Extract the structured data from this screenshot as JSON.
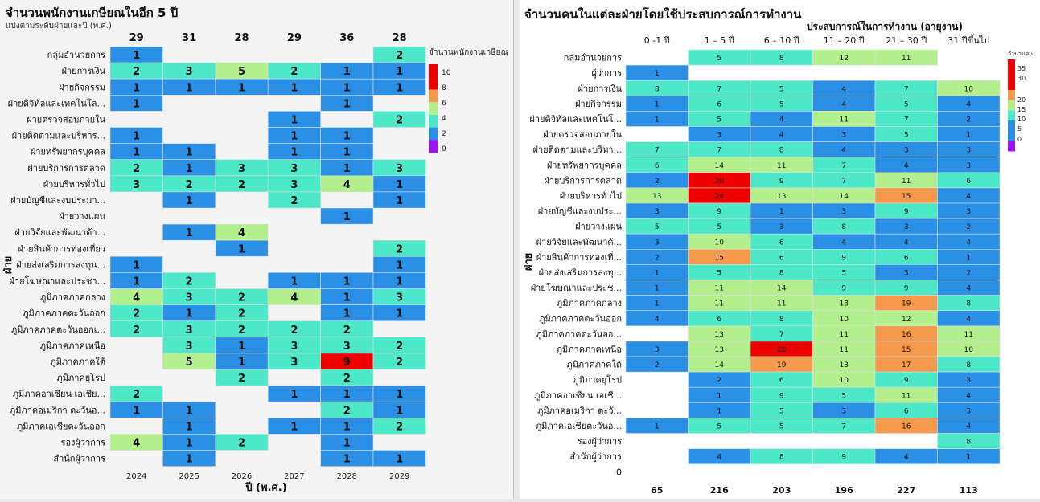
{
  "colors": {
    "none": "#ffffff",
    "blue": "#2b8fe6",
    "teal": "#4de8c8",
    "green": "#b4ef8e",
    "orange": "#f59a4c",
    "red": "#ee0000",
    "purple": "#9a16f0"
  },
  "left": {
    "title": "จำนวนพนักงานเกษียณในอีก 5 ปี",
    "subtitle": "แบ่งตามระดับฝ่ายและปี (พ.ศ.)",
    "xlabel": "ปี (พ.ศ.)",
    "ylabel": "ฝ่าย",
    "legend": {
      "title": "จำนวนพนักงานเกษียณ",
      "ticks": [
        "10",
        "8",
        "6",
        "4",
        "2",
        "0"
      ]
    }
  },
  "right": {
    "title": "จำนวนคนในแต่ละฝ่ายโดยใช้ประสบการณ์การทำงาน",
    "ylabel": "ฝ่าย",
    "legend": {
      "title": "จำนวนคน",
      "ticks": [
        "35",
        "30",
        "20",
        "15",
        "10",
        "5",
        "0"
      ]
    }
  },
  "chart_data": [
    {
      "type": "heatmap",
      "title": "จำนวนพนักงานเกษียณในอีก 5 ปี",
      "subtitle": "แบ่งตามระดับฝ่ายและปี (พ.ศ.)",
      "xlabel": "ปี (พ.ศ.)",
      "ylabel": "ฝ่าย",
      "x": [
        "2024",
        "2025",
        "2026",
        "2027",
        "2028",
        "2029"
      ],
      "column_totals": [
        29,
        31,
        28,
        29,
        36,
        28
      ],
      "y": [
        "กลุ่มอำนวยการ",
        "ฝ่ายการเงิน",
        "ฝ่ายกิจกรรม",
        "ฝ่ายดิจิทัลและเทคโนโล...",
        "ฝ่ายตรวจสอบภายใน",
        "ฝ่ายติดตามและบริหาร...",
        "ฝ่ายทรัพยากรบุคคล",
        "ฝ่ายบริการการตลาด",
        "ฝ่ายบริหารทั่วไป",
        "ฝ่ายบัญชีและงบประมา...",
        "ฝ่ายวางแผน",
        "ฝ่ายวิจัยและพัฒนาด้า...",
        "ฝ่ายสินค้าการท่องเที่ยว",
        "ฝ่ายส่งเสริมการลงทุน...",
        "ฝ่ายโฆษณาและประชา...",
        "ภูมิภาคภาคกลาง",
        "ภูมิภาคภาคตะวันออก",
        "ภูมิภาคภาคตะวันออกเ...",
        "ภูมิภาคภาคเหนือ",
        "ภูมิภาคภาคใต้",
        "ภูมิภาคยุโรป",
        "ภูมิภาคอาเซียน เอเชีย...",
        "ภูมิภาคอเมริกา ตะวันอ...",
        "ภูมิภาคเอเชียตะวันออก",
        "รองผู้ว่าการ",
        "สำนักผู้ว่าการ"
      ],
      "values": [
        [
          1,
          null,
          null,
          null,
          null,
          2
        ],
        [
          2,
          3,
          5,
          2,
          1,
          1
        ],
        [
          1,
          1,
          1,
          1,
          1,
          1
        ],
        [
          1,
          null,
          null,
          null,
          1,
          null
        ],
        [
          null,
          null,
          null,
          1,
          null,
          2
        ],
        [
          1,
          null,
          null,
          1,
          1,
          null
        ],
        [
          1,
          1,
          null,
          1,
          1,
          null
        ],
        [
          2,
          1,
          3,
          3,
          1,
          3
        ],
        [
          3,
          2,
          2,
          3,
          4,
          1
        ],
        [
          null,
          1,
          null,
          2,
          null,
          1
        ],
        [
          null,
          null,
          null,
          null,
          1,
          null
        ],
        [
          null,
          1,
          4,
          null,
          null,
          null
        ],
        [
          null,
          null,
          1,
          null,
          null,
          2
        ],
        [
          1,
          null,
          null,
          null,
          null,
          1
        ],
        [
          1,
          2,
          null,
          1,
          1,
          1
        ],
        [
          4,
          3,
          2,
          4,
          1,
          3
        ],
        [
          2,
          1,
          2,
          null,
          1,
          1
        ],
        [
          2,
          3,
          2,
          2,
          2,
          null
        ],
        [
          null,
          3,
          1,
          3,
          3,
          2
        ],
        [
          null,
          5,
          1,
          3,
          9,
          2
        ],
        [
          null,
          null,
          2,
          null,
          2,
          null
        ],
        [
          2,
          null,
          null,
          1,
          1,
          1
        ],
        [
          1,
          1,
          null,
          null,
          2,
          1
        ],
        [
          null,
          1,
          null,
          1,
          1,
          2
        ],
        [
          4,
          1,
          2,
          null,
          1,
          null
        ],
        [
          null,
          1,
          null,
          null,
          1,
          1
        ]
      ]
    },
    {
      "type": "heatmap",
      "title": "จำนวนคนในแต่ละฝ่ายโดยใช้ประสบการณ์การทำงาน",
      "xlabel": "ประสบการณ์ในการทำงาน (อายุงาน)",
      "ylabel": "ฝ่าย",
      "x": [
        "0 -1 ปี",
        "1 – 5 ปี",
        "6 – 10 ปี",
        "11 – 20 ปี",
        "21 – 30 ปี",
        "31 ปีขึ้นไป"
      ],
      "column_totals": [
        65,
        216,
        203,
        196,
        227,
        113
      ],
      "y": [
        "กลุ่มอำนวยการ",
        "ผู้ว่าการ",
        "ฝ่ายการเงิน",
        "ฝ่ายกิจกรรม",
        "ฝ่ายดิจิทัลและเทคโนโ...",
        "ฝ่ายตรวจสอบภายใน",
        "ฝ่ายติดตามและบริหา...",
        "ฝ่ายทรัพยากรบุคคล",
        "ฝ่ายบริการการตลาด",
        "ฝ่ายบริหารทั่วไป",
        "ฝ่ายบัญชีและงบประ...",
        "ฝ่ายวางแผน",
        "ฝ่ายวิจัยและพัฒนาด้...",
        "ฝ่ายสินค้าการท่องเที่...",
        "ฝ่ายส่งเสริมการลงทุ...",
        "ฝ่ายโฆษณาและประช...",
        "ภูมิภาคภาคกลาง",
        "ภูมิภาคภาคตะวันออก",
        "ภูมิภาคภาคตะวันออ...",
        "ภูมิภาคภาคเหนือ",
        "ภูมิภาคภาคใต้",
        "ภูมิภาคยุโรป",
        "ภูมิภาคอาเซียน เอเชี...",
        "ภูมิภาคอเมริกา ตะวั...",
        "ภูมิภาคเอเชียตะวันอ...",
        "รองผู้ว่าการ",
        "สำนักผู้ว่าการ",
        "0"
      ],
      "values": [
        [
          null,
          5,
          8,
          12,
          11,
          null
        ],
        [
          1,
          null,
          null,
          null,
          null,
          null
        ],
        [
          8,
          7,
          5,
          4,
          7,
          10
        ],
        [
          1,
          6,
          5,
          4,
          5,
          4
        ],
        [
          1,
          5,
          4,
          11,
          7,
          2
        ],
        [
          null,
          3,
          4,
          3,
          5,
          1
        ],
        [
          7,
          7,
          8,
          4,
          3,
          3
        ],
        [
          6,
          14,
          11,
          7,
          4,
          3
        ],
        [
          2,
          20,
          9,
          7,
          11,
          6
        ],
        [
          13,
          24,
          13,
          14,
          15,
          4
        ],
        [
          3,
          9,
          1,
          3,
          9,
          3
        ],
        [
          5,
          5,
          3,
          8,
          3,
          2
        ],
        [
          3,
          10,
          6,
          4,
          4,
          4
        ],
        [
          2,
          15,
          6,
          9,
          6,
          1
        ],
        [
          1,
          5,
          8,
          5,
          3,
          2
        ],
        [
          1,
          11,
          14,
          9,
          9,
          4
        ],
        [
          1,
          11,
          11,
          13,
          19,
          8
        ],
        [
          4,
          6,
          8,
          10,
          12,
          4
        ],
        [
          null,
          13,
          7,
          11,
          16,
          11
        ],
        [
          3,
          13,
          20,
          11,
          15,
          10
        ],
        [
          2,
          14,
          19,
          13,
          17,
          8
        ],
        [
          null,
          2,
          6,
          10,
          9,
          3
        ],
        [
          null,
          1,
          9,
          5,
          11,
          4
        ],
        [
          null,
          1,
          5,
          3,
          6,
          3
        ],
        [
          1,
          5,
          5,
          7,
          16,
          4
        ],
        [
          null,
          null,
          null,
          null,
          null,
          8
        ],
        [
          null,
          4,
          8,
          9,
          4,
          1
        ],
        [
          null,
          null,
          null,
          null,
          null,
          null
        ]
      ]
    }
  ]
}
